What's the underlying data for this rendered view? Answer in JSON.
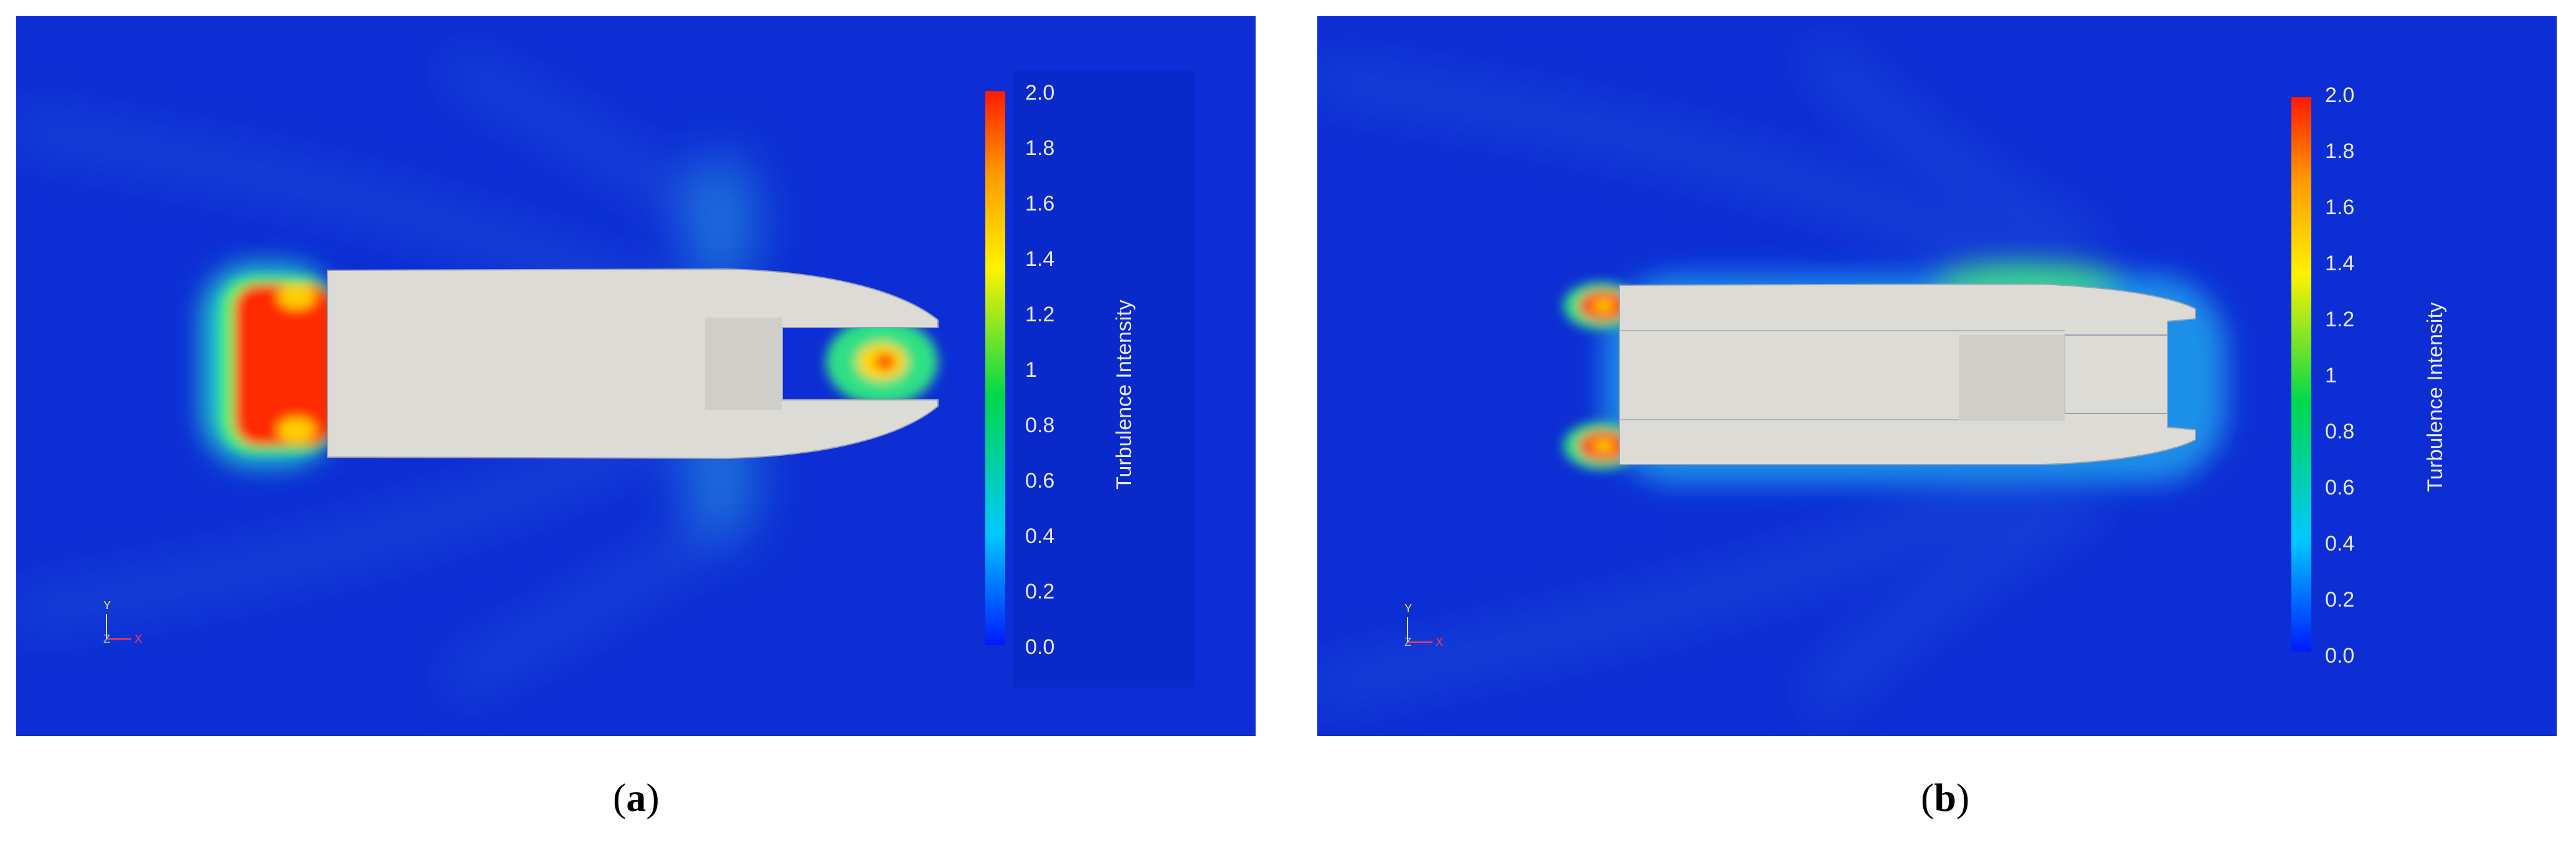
{
  "colorbar": {
    "title": "Turbulence Intensity",
    "ticks": [
      "2.0",
      "1.8",
      "1.6",
      "1.4",
      "1.2",
      "1",
      "0.8",
      "0.6",
      "0.4",
      "0.2",
      "0.0"
    ],
    "colors": [
      "#0019ff",
      "#00c8ff",
      "#00d84a",
      "#fff200",
      "#ff9a00",
      "#ff1a00"
    ]
  },
  "background_color": "#0d2ed4",
  "hull_color": "#dcdbd6",
  "panels": [
    {
      "letter": "a",
      "axes": {
        "y": "Y",
        "z": "Z",
        "x": "X"
      }
    },
    {
      "letter": "b",
      "axes": {
        "y": "Y",
        "z": "Z",
        "x": "X"
      }
    }
  ]
}
